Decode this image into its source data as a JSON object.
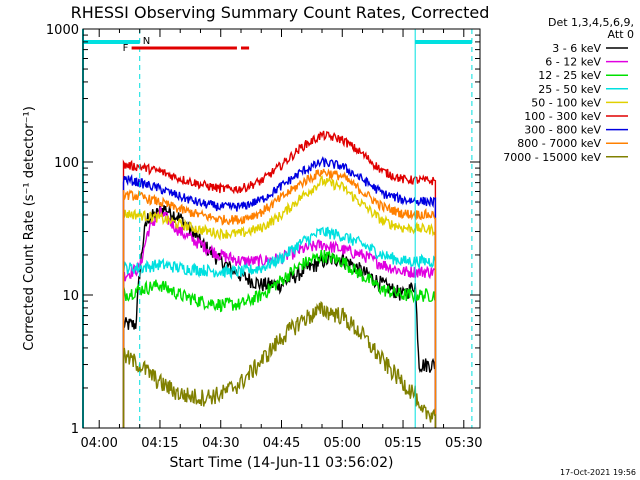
{
  "chart_data": {
    "type": "line",
    "title": "RHESSI Observing Summary Count Rates, Corrected",
    "xlabel": "Start Time (14-Jun-11 03:56:02)",
    "ylabel": "Corrected Count Rate (s⁻¹ detector⁻¹)",
    "y_scale": "log",
    "ylim": [
      1,
      1000
    ],
    "xlim": [
      "03:56",
      "05:34"
    ],
    "x_ticks": [
      "04:00",
      "04:15",
      "04:30",
      "04:45",
      "05:00",
      "05:15",
      "05:30"
    ],
    "y_ticks": [
      "1",
      "10",
      "100",
      "1000"
    ],
    "legend_header": [
      "Det 1,3,4,5,6,9,",
      "Att 0"
    ],
    "legend_position": "right",
    "timestamp": "17-Oct-2021 19:56",
    "flags": [
      {
        "label": "F",
        "color": "#e00000",
        "segments": [
          [
            "04:08",
            "04:34"
          ],
          [
            "04:35",
            "04:37"
          ]
        ]
      },
      {
        "label": "N",
        "color": "#00e0e0",
        "segments": []
      }
    ],
    "night_boundaries": [
      "04:10",
      "05:18",
      "05:32"
    ],
    "night_segments": [
      [
        "03:56",
        "04:10"
      ],
      [
        "05:18",
        "05:32"
      ]
    ],
    "data_start": "04:06",
    "data_end": "05:23",
    "series": [
      {
        "name": "3 - 6 keV",
        "color": "#000000",
        "points": [
          [
            "04:06",
            6
          ],
          [
            "04:09",
            6
          ],
          [
            "04:10",
            15
          ],
          [
            "04:11",
            28
          ],
          [
            "04:12",
            38
          ],
          [
            "04:14",
            40
          ],
          [
            "04:16",
            45
          ],
          [
            "04:20",
            38
          ],
          [
            "04:25",
            25
          ],
          [
            "04:30",
            18
          ],
          [
            "04:35",
            14
          ],
          [
            "04:40",
            12
          ],
          [
            "04:45",
            12
          ],
          [
            "04:50",
            15
          ],
          [
            "04:55",
            18
          ],
          [
            "05:00",
            19
          ],
          [
            "05:05",
            15
          ],
          [
            "05:10",
            12
          ],
          [
            "05:15",
            10
          ],
          [
            "05:18",
            12
          ],
          [
            "05:19",
            3
          ],
          [
            "05:23",
            3
          ]
        ]
      },
      {
        "name": "6 - 12 keV",
        "color": "#e000e0",
        "points": [
          [
            "04:06",
            14
          ],
          [
            "04:10",
            16
          ],
          [
            "04:12",
            30
          ],
          [
            "04:15",
            42
          ],
          [
            "04:20",
            30
          ],
          [
            "04:25",
            24
          ],
          [
            "04:30",
            20
          ],
          [
            "04:35",
            18
          ],
          [
            "04:40",
            18
          ],
          [
            "04:45",
            19
          ],
          [
            "04:50",
            22
          ],
          [
            "04:55",
            24
          ],
          [
            "05:00",
            22
          ],
          [
            "05:05",
            20
          ],
          [
            "05:10",
            17
          ],
          [
            "05:15",
            15
          ],
          [
            "05:23",
            15
          ]
        ]
      },
      {
        "name": "12 - 25 keV",
        "color": "#00e000",
        "points": [
          [
            "04:06",
            10
          ],
          [
            "04:10",
            11
          ],
          [
            "04:15",
            12
          ],
          [
            "04:20",
            10
          ],
          [
            "04:25",
            9
          ],
          [
            "04:30",
            8.5
          ],
          [
            "04:35",
            8.5
          ],
          [
            "04:40",
            10
          ],
          [
            "04:45",
            13
          ],
          [
            "04:50",
            17
          ],
          [
            "04:55",
            20
          ],
          [
            "05:00",
            18
          ],
          [
            "05:05",
            14
          ],
          [
            "05:10",
            11
          ],
          [
            "05:15",
            10
          ],
          [
            "05:23",
            10
          ]
        ]
      },
      {
        "name": "25 - 50 keV",
        "color": "#00e0e0",
        "points": [
          [
            "04:06",
            16
          ],
          [
            "04:10",
            16
          ],
          [
            "04:15",
            17
          ],
          [
            "04:20",
            16
          ],
          [
            "04:25",
            15.5
          ],
          [
            "04:30",
            15
          ],
          [
            "04:35",
            15
          ],
          [
            "04:40",
            16
          ],
          [
            "04:45",
            19
          ],
          [
            "04:50",
            25
          ],
          [
            "04:55",
            30
          ],
          [
            "05:00",
            28
          ],
          [
            "05:05",
            24
          ],
          [
            "05:10",
            20
          ],
          [
            "05:15",
            18
          ],
          [
            "05:23",
            18
          ]
        ]
      },
      {
        "name": "50 - 100 keV",
        "color": "#e0d000",
        "points": [
          [
            "04:06",
            41
          ],
          [
            "04:10",
            40
          ],
          [
            "04:15",
            38
          ],
          [
            "04:20",
            34
          ],
          [
            "04:25",
            31
          ],
          [
            "04:30",
            29
          ],
          [
            "04:35",
            29
          ],
          [
            "04:40",
            32
          ],
          [
            "04:45",
            40
          ],
          [
            "04:50",
            55
          ],
          [
            "04:55",
            72
          ],
          [
            "05:00",
            65
          ],
          [
            "05:05",
            48
          ],
          [
            "05:10",
            36
          ],
          [
            "05:15",
            32
          ],
          [
            "05:23",
            31
          ]
        ]
      },
      {
        "name": "100 - 300 keV",
        "color": "#e00000",
        "points": [
          [
            "04:06",
            95
          ],
          [
            "04:10",
            92
          ],
          [
            "04:15",
            85
          ],
          [
            "04:20",
            75
          ],
          [
            "04:25",
            68
          ],
          [
            "04:30",
            63
          ],
          [
            "04:35",
            63
          ],
          [
            "04:40",
            72
          ],
          [
            "04:45",
            95
          ],
          [
            "04:50",
            130
          ],
          [
            "04:55",
            160
          ],
          [
            "05:00",
            148
          ],
          [
            "05:05",
            115
          ],
          [
            "05:10",
            85
          ],
          [
            "05:15",
            74
          ],
          [
            "05:23",
            72
          ]
        ]
      },
      {
        "name": "300 - 800 keV",
        "color": "#0000e0",
        "points": [
          [
            "04:06",
            75
          ],
          [
            "04:10",
            70
          ],
          [
            "04:15",
            63
          ],
          [
            "04:20",
            55
          ],
          [
            "04:25",
            49
          ],
          [
            "04:30",
            46
          ],
          [
            "04:35",
            46
          ],
          [
            "04:40",
            52
          ],
          [
            "04:45",
            66
          ],
          [
            "04:50",
            85
          ],
          [
            "04:55",
            100
          ],
          [
            "05:00",
            93
          ],
          [
            "05:05",
            74
          ],
          [
            "05:10",
            58
          ],
          [
            "05:15",
            52
          ],
          [
            "05:23",
            50
          ]
        ]
      },
      {
        "name": "800 - 7000 keV",
        "color": "#ff8000",
        "points": [
          [
            "04:06",
            57
          ],
          [
            "04:10",
            55
          ],
          [
            "04:15",
            50
          ],
          [
            "04:20",
            44
          ],
          [
            "04:25",
            40
          ],
          [
            "04:30",
            37
          ],
          [
            "04:35",
            37
          ],
          [
            "04:40",
            42
          ],
          [
            "04:45",
            54
          ],
          [
            "04:50",
            70
          ],
          [
            "04:55",
            85
          ],
          [
            "05:00",
            78
          ],
          [
            "05:05",
            60
          ],
          [
            "05:10",
            46
          ],
          [
            "05:15",
            41
          ],
          [
            "05:23",
            40
          ]
        ]
      },
      {
        "name": "7000 - 15000 keV",
        "color": "#808000",
        "points": [
          [
            "04:06",
            3.5
          ],
          [
            "04:10",
            3
          ],
          [
            "04:15",
            2.2
          ],
          [
            "04:20",
            1.8
          ],
          [
            "04:25",
            1.7
          ],
          [
            "04:30",
            1.8
          ],
          [
            "04:35",
            2.2
          ],
          [
            "04:40",
            3.2
          ],
          [
            "04:45",
            4.8
          ],
          [
            "04:50",
            6.5
          ],
          [
            "04:55",
            7.8
          ],
          [
            "05:00",
            7
          ],
          [
            "05:05",
            5
          ],
          [
            "05:10",
            3.2
          ],
          [
            "05:15",
            2.2
          ],
          [
            "05:18",
            1.8
          ],
          [
            "05:19",
            1.3
          ],
          [
            "05:23",
            1.3
          ]
        ]
      }
    ]
  }
}
